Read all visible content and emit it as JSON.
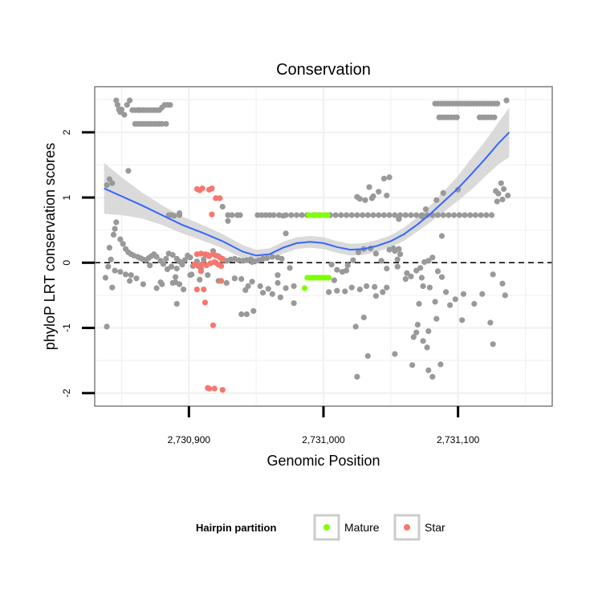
{
  "chart_data": {
    "type": "scatter",
    "title": "Conservation",
    "xlabel": "Genomic Position",
    "ylabel": "phyloP LRT conservation scores",
    "xlim": [
      2730830,
      2731170
    ],
    "ylim": [
      -2.2,
      2.7
    ],
    "x_ticks": [
      2730900,
      2731000,
      2731100
    ],
    "x_tick_labels": [
      "2,730,900",
      "2,731,000",
      "2,731,100"
    ],
    "y_ticks": [
      -2,
      -1,
      0,
      1,
      2
    ],
    "y_tick_labels": [
      "-2",
      "-1",
      "0",
      "1",
      "2"
    ],
    "grid": true,
    "reference_line": {
      "y": 0,
      "style": "dashed"
    },
    "colors": {
      "Other": "#999999",
      "Mature": "#7fff00",
      "Star": "#f8766d",
      "smooth": "#3366ff",
      "ribbon": "#d3d3d3"
    },
    "legend": {
      "title": "Hairpin partition",
      "placement": "bottom",
      "entries": [
        {
          "label": "Mature",
          "color": "#7fff00"
        },
        {
          "label": "Star",
          "color": "#f8766d"
        }
      ]
    },
    "series": [
      {
        "group": "Other",
        "color": "#999999",
        "x": [
          2730846,
          2730847,
          2730848,
          2730849,
          2730850,
          2730852,
          2730854,
          2730856,
          2730858,
          2730860,
          2730862,
          2730863,
          2730864,
          2730866,
          2730868,
          2730870,
          2730872,
          2730874,
          2730876,
          2730878,
          2730880,
          2730882,
          2730884,
          2730886,
          2730860,
          2730862,
          2730864,
          2730866,
          2730868,
          2730870,
          2730872,
          2730874,
          2730876,
          2730878,
          2730880,
          2730883,
          2730841,
          2730842,
          2730843,
          2730844,
          2730845,
          2730846,
          2730849,
          2730851,
          2730853,
          2730855,
          2730857,
          2730859,
          2730862,
          2730864,
          2730866,
          2730868,
          2730870,
          2730872,
          2730874,
          2730876,
          2730879,
          2730881,
          2730883,
          2730885,
          2730888,
          2730891,
          2730893,
          2730895,
          2730897,
          2730899,
          2730901,
          2730903,
          2730906,
          2730909,
          2730911,
          2730914,
          2730918,
          2730922,
          2730925,
          2730928,
          2730931,
          2730934,
          2730937,
          2730940,
          2730943,
          2730946,
          2730949,
          2730952,
          2730955,
          2730958,
          2730962,
          2730966,
          2730969,
          2730839,
          2730841,
          2730843,
          2730885,
          2730887,
          2730889,
          2730893,
          2730929,
          2730932,
          2730936,
          2730938,
          2730951,
          2730954,
          2730957,
          2730960,
          2730963,
          2730967,
          2730972,
          2730976,
          2730980,
          2730984,
          2730988,
          2730993,
          2730997,
          2731001,
          2731005,
          2731009,
          2731013,
          2731017,
          2731021,
          2731025,
          2731029,
          2731033,
          2731037,
          2731041,
          2731045,
          2731049,
          2731053,
          2731057,
          2731061,
          2731065,
          2731069,
          2731073,
          2731077,
          2731081,
          2731085,
          2731089,
          2731093,
          2731097,
          2731101,
          2731105,
          2731109,
          2731113,
          2731117,
          2731121,
          2731125,
          2731129,
          2731133,
          2730855,
          2730893,
          2730970,
          2731056,
          2731073,
          2731076,
          2731084,
          2731089,
          2731100,
          2731128,
          2731130,
          2731132,
          2731134,
          2731137,
          2731025,
          2731027,
          2731031,
          2731034,
          2731037,
          2731041,
          2731045,
          2731049,
          2731053,
          2731056,
          2731049,
          2731052,
          2731055,
          2731057,
          2731006,
          2731010,
          2731014,
          2731018,
          2731022,
          2731026,
          2731030,
          2731035,
          2731039,
          2731043,
          2731047,
          2731062,
          2731065,
          2731069,
          2731072,
          2731075,
          2731078,
          2731081,
          2731085,
          2731088,
          2730966,
          2730972,
          2730978,
          2731083,
          2730888,
          2730890,
          2730876,
          2730880,
          2730942,
          2730947,
          2730953,
          2730959,
          2730966,
          2730972,
          2730978,
          2731004,
          2731010,
          2731016,
          2731021,
          2731027,
          2731032,
          2731038,
          2731044,
          2731074,
          2731079,
          2731088,
          2731094,
          2731135,
          2730838,
          2730839,
          2730840,
          2730845,
          2730849,
          2730853,
          2730857,
          2730861,
          2730866,
          2730871,
          2730879,
          2730884,
          2730891,
          2730896,
          2730902,
          2730908,
          2730914,
          2730922,
          2730928,
          2730934,
          2730939,
          2730944,
          2730948,
          2730955,
          2730962,
          2730968,
          2730975,
          2731008,
          2731017,
          2731024,
          2731030,
          2731039,
          2731047,
          2731055,
          2731061,
          2731067,
          2731073,
          2731078,
          2731084,
          2731091,
          2731098,
          2731104,
          2731112,
          2731118,
          2731126,
          2731133,
          2730856,
          2730893,
          2730901,
          2730939,
          2730943,
          2730947,
          2730925,
          2730929,
          2730934,
          2730887,
          2730891,
          2730890,
          2730887,
          2731025,
          2731033,
          2731036,
          2731047,
          2731053,
          2731066,
          2731069,
          2731070,
          2731074,
          2731077,
          2731078,
          2731081,
          2731071,
          2731087,
          2731103,
          2731126,
          2731124
        ],
        "y": [
          2.49,
          2.42,
          2.35,
          2.31,
          2.35,
          2.27,
          2.42,
          2.49,
          2.34,
          2.34,
          2.34,
          2.34,
          2.34,
          2.34,
          2.34,
          2.34,
          2.34,
          2.34,
          2.34,
          2.34,
          2.38,
          2.42,
          2.42,
          2.42,
          2.13,
          2.13,
          2.13,
          2.13,
          2.13,
          2.13,
          2.13,
          2.13,
          2.13,
          2.13,
          2.13,
          2.13,
          0.23,
          0.05,
          -0.38,
          0.43,
          0.52,
          0.62,
          0.36,
          0.29,
          0.21,
          0.16,
          0.13,
          0.11,
          0.09,
          0.07,
          0.05,
          0.04,
          0.07,
          0.1,
          0.13,
          0.09,
          0.03,
          -0.02,
          0.06,
          0.14,
          0.12,
          0.06,
          0.02,
          -0.03,
          0.04,
          0.11,
          0.08,
          -0.05,
          0.02,
          -0.09,
          0.05,
          0.12,
          0.18,
          0.1,
          0.04,
          0.03,
          0.05,
          0.06,
          0.04,
          0.03,
          0.04,
          0.05,
          0.02,
          0.04,
          0.06,
          0.07,
          0.09,
          0.08,
          0.06,
          1.19,
          1.28,
          1.22,
          0.73,
          0.73,
          0.72,
          0.73,
          0.73,
          0.73,
          0.73,
          0.73,
          0.73,
          0.73,
          0.73,
          0.73,
          0.73,
          0.73,
          0.73,
          0.73,
          0.73,
          0.73,
          0.73,
          0.73,
          0.73,
          0.73,
          0.73,
          0.73,
          0.73,
          0.73,
          0.73,
          0.73,
          0.73,
          0.73,
          0.73,
          0.73,
          0.73,
          0.73,
          0.73,
          0.73,
          0.73,
          0.73,
          0.73,
          0.73,
          0.73,
          0.73,
          0.73,
          0.73,
          0.73,
          0.73,
          0.73,
          0.73,
          0.73,
          0.73,
          0.73,
          0.73,
          0.73,
          0.94,
          0.97,
          1.41,
          0.76,
          0.72,
          0.67,
          0.71,
          0.82,
          0.96,
          1.07,
          1.12,
          1.1,
          1.06,
          1.22,
          1.13,
          1.03,
          1.01,
          0.98,
          0.96,
          1.16,
          1.02,
          1.09,
          1.29,
          1.31,
          0.18,
          0.21,
          0.2,
          0.22,
          0.05,
          0.13,
          -0.03,
          -0.11,
          -0.14,
          -0.04,
          0.04,
          0.16,
          0.21,
          0.22,
          0.14,
          0.03,
          -0.09,
          -0.16,
          -0.21,
          -0.12,
          -0.08,
          0.01,
          0.03,
          0.08,
          -0.13,
          -0.22,
          -0.19,
          0.45,
          -0.62,
          -0.6,
          -0.31,
          -0.22,
          -0.39,
          -0.33,
          -0.42,
          -0.29,
          -0.36,
          -0.4,
          -0.31,
          -0.39,
          -0.36,
          -0.45,
          -0.43,
          -0.44,
          -0.38,
          -0.41,
          -0.36,
          -0.37,
          -0.45,
          -0.36,
          -0.38,
          0.41,
          -0.65,
          -0.5,
          -0.23,
          -0.98,
          -0.06,
          -0.12,
          -0.14,
          -0.18,
          -0.19,
          -0.24,
          -0.33,
          -0.04,
          -0.3,
          -0.1,
          -0.63,
          -0.41,
          -0.18,
          -0.26,
          -0.19,
          -0.28,
          -0.31,
          -0.24,
          -0.79,
          -0.36,
          -0.74,
          -0.46,
          -0.48,
          -0.53,
          -0.08,
          -0.27,
          -0.12,
          -0.98,
          -0.84,
          -0.51,
          -0.38,
          -0.06,
          -0.25,
          -1.14,
          -0.23,
          -1.05,
          -0.86,
          -0.45,
          -0.56,
          -0.48,
          -0.63,
          -0.48,
          -0.18,
          -0.32,
          -0.28,
          -0.33,
          -0.19,
          -0.25,
          -0.79,
          0.01,
          0.86,
          0.64,
          -0.24,
          -0.06,
          -0.09,
          -0.3,
          -0.06,
          -1.75,
          -1.43,
          0.99,
          1.03,
          -1.4,
          -1.57,
          -1.07,
          -0.95,
          -1.2,
          -1.3,
          -1.65,
          -1.75,
          -0.63,
          -1.56,
          -0.88,
          -1.25,
          -0.92
        ],
        "y_band_top": [
          2.49,
          2.47,
          2.42,
          2.39,
          2.35,
          2.33,
          2.49,
          2.49,
          2.34,
          2.34,
          2.34,
          2.34,
          2.34,
          2.34,
          2.34,
          2.34,
          2.34,
          2.34,
          2.34,
          2.34,
          2.38,
          2.42,
          2.42,
          2.42,
          2.13,
          2.13,
          2.13,
          2.13,
          2.13,
          2.13,
          2.13,
          2.13,
          2.13,
          2.13,
          2.13,
          2.13
        ],
        "band_right": {
          "top": {
            "x_range": [
              2731083,
              2731131
            ],
            "y": 2.44,
            "extra": [
              [
                2731136,
                2.49
              ]
            ]
          },
          "mid": {
            "x_range": [
              2731086,
              2731100
            ],
            "y": 2.23
          },
          "mid2": {
            "x_range": [
              2731116,
              2731128
            ],
            "y": 2.23
          }
        }
      },
      {
        "group": "Mature",
        "color": "#7fff00",
        "x": [
          2730986,
          2730989,
          2730992,
          2730995,
          2730998,
          2731001,
          2731003,
          2730988,
          2730990,
          2730992,
          2730994,
          2730996,
          2730998,
          2731000,
          2731002,
          2731004
        ],
        "y": [
          -0.39,
          0.73,
          0.73,
          0.73,
          0.73,
          0.73,
          0.73,
          -0.23,
          -0.23,
          -0.23,
          -0.23,
          -0.23,
          -0.23,
          -0.23,
          -0.23,
          -0.23
        ]
      },
      {
        "group": "Star",
        "color": "#f8766d",
        "x": [
          2730906,
          2730908,
          2730910,
          2730915,
          2730917,
          2730920,
          2730923,
          2730906,
          2730909,
          2730912,
          2730914,
          2730918,
          2730920,
          2730923,
          2730925,
          2730904,
          2730907,
          2730910,
          2730913,
          2730916,
          2730919,
          2730922,
          2730924,
          2730911,
          2730918,
          2730924,
          2730909,
          2730915,
          2730917,
          2730920
        ],
        "y": [
          1.13,
          1.11,
          1.14,
          1.12,
          1.14,
          0.99,
          0.99,
          0.13,
          0.14,
          0.13,
          0.12,
          0.13,
          0.11,
          0.08,
          0.06,
          -0.03,
          -0.05,
          -0.02,
          -0.04,
          -0.01,
          0.01,
          -0.03,
          -0.05,
          -0.41,
          -0.96,
          -0.28,
          -0.13,
          0.1,
          0.74,
          0.0
        ],
        "outliers": {
          "x": [
            2730906,
            2730912,
            2730914,
            2730915,
            2730919,
            2730925
          ],
          "y": [
            -0.41,
            -0.61,
            -1.92,
            -1.93,
            -1.93,
            -1.95
          ]
        }
      }
    ],
    "smooth": {
      "x": [
        2730837,
        2730850,
        2730865,
        2730880,
        2730895,
        2730910,
        2730925,
        2730940,
        2730950,
        2730960,
        2730970,
        2730980,
        2730990,
        2731000,
        2731010,
        2731020,
        2731030,
        2731040,
        2731050,
        2731060,
        2731070,
        2731080,
        2731090,
        2731100,
        2731110,
        2731120,
        2731130,
        2731138
      ],
      "y": [
        1.14,
        1.02,
        0.88,
        0.73,
        0.58,
        0.46,
        0.33,
        0.17,
        0.11,
        0.13,
        0.23,
        0.3,
        0.32,
        0.3,
        0.24,
        0.2,
        0.21,
        0.26,
        0.33,
        0.44,
        0.59,
        0.76,
        0.95,
        1.14,
        1.36,
        1.59,
        1.83,
        2.0
      ],
      "se_upper": [
        1.53,
        1.31,
        1.08,
        0.88,
        0.71,
        0.58,
        0.44,
        0.27,
        0.2,
        0.22,
        0.32,
        0.39,
        0.41,
        0.39,
        0.33,
        0.29,
        0.3,
        0.35,
        0.42,
        0.54,
        0.7,
        0.89,
        1.11,
        1.33,
        1.6,
        1.86,
        2.15,
        2.38
      ],
      "se_lower": [
        0.75,
        0.73,
        0.68,
        0.58,
        0.45,
        0.34,
        0.22,
        0.07,
        0.02,
        0.04,
        0.14,
        0.21,
        0.23,
        0.21,
        0.15,
        0.11,
        0.12,
        0.17,
        0.24,
        0.34,
        0.48,
        0.63,
        0.79,
        0.95,
        1.12,
        1.32,
        1.51,
        1.62
      ]
    }
  }
}
